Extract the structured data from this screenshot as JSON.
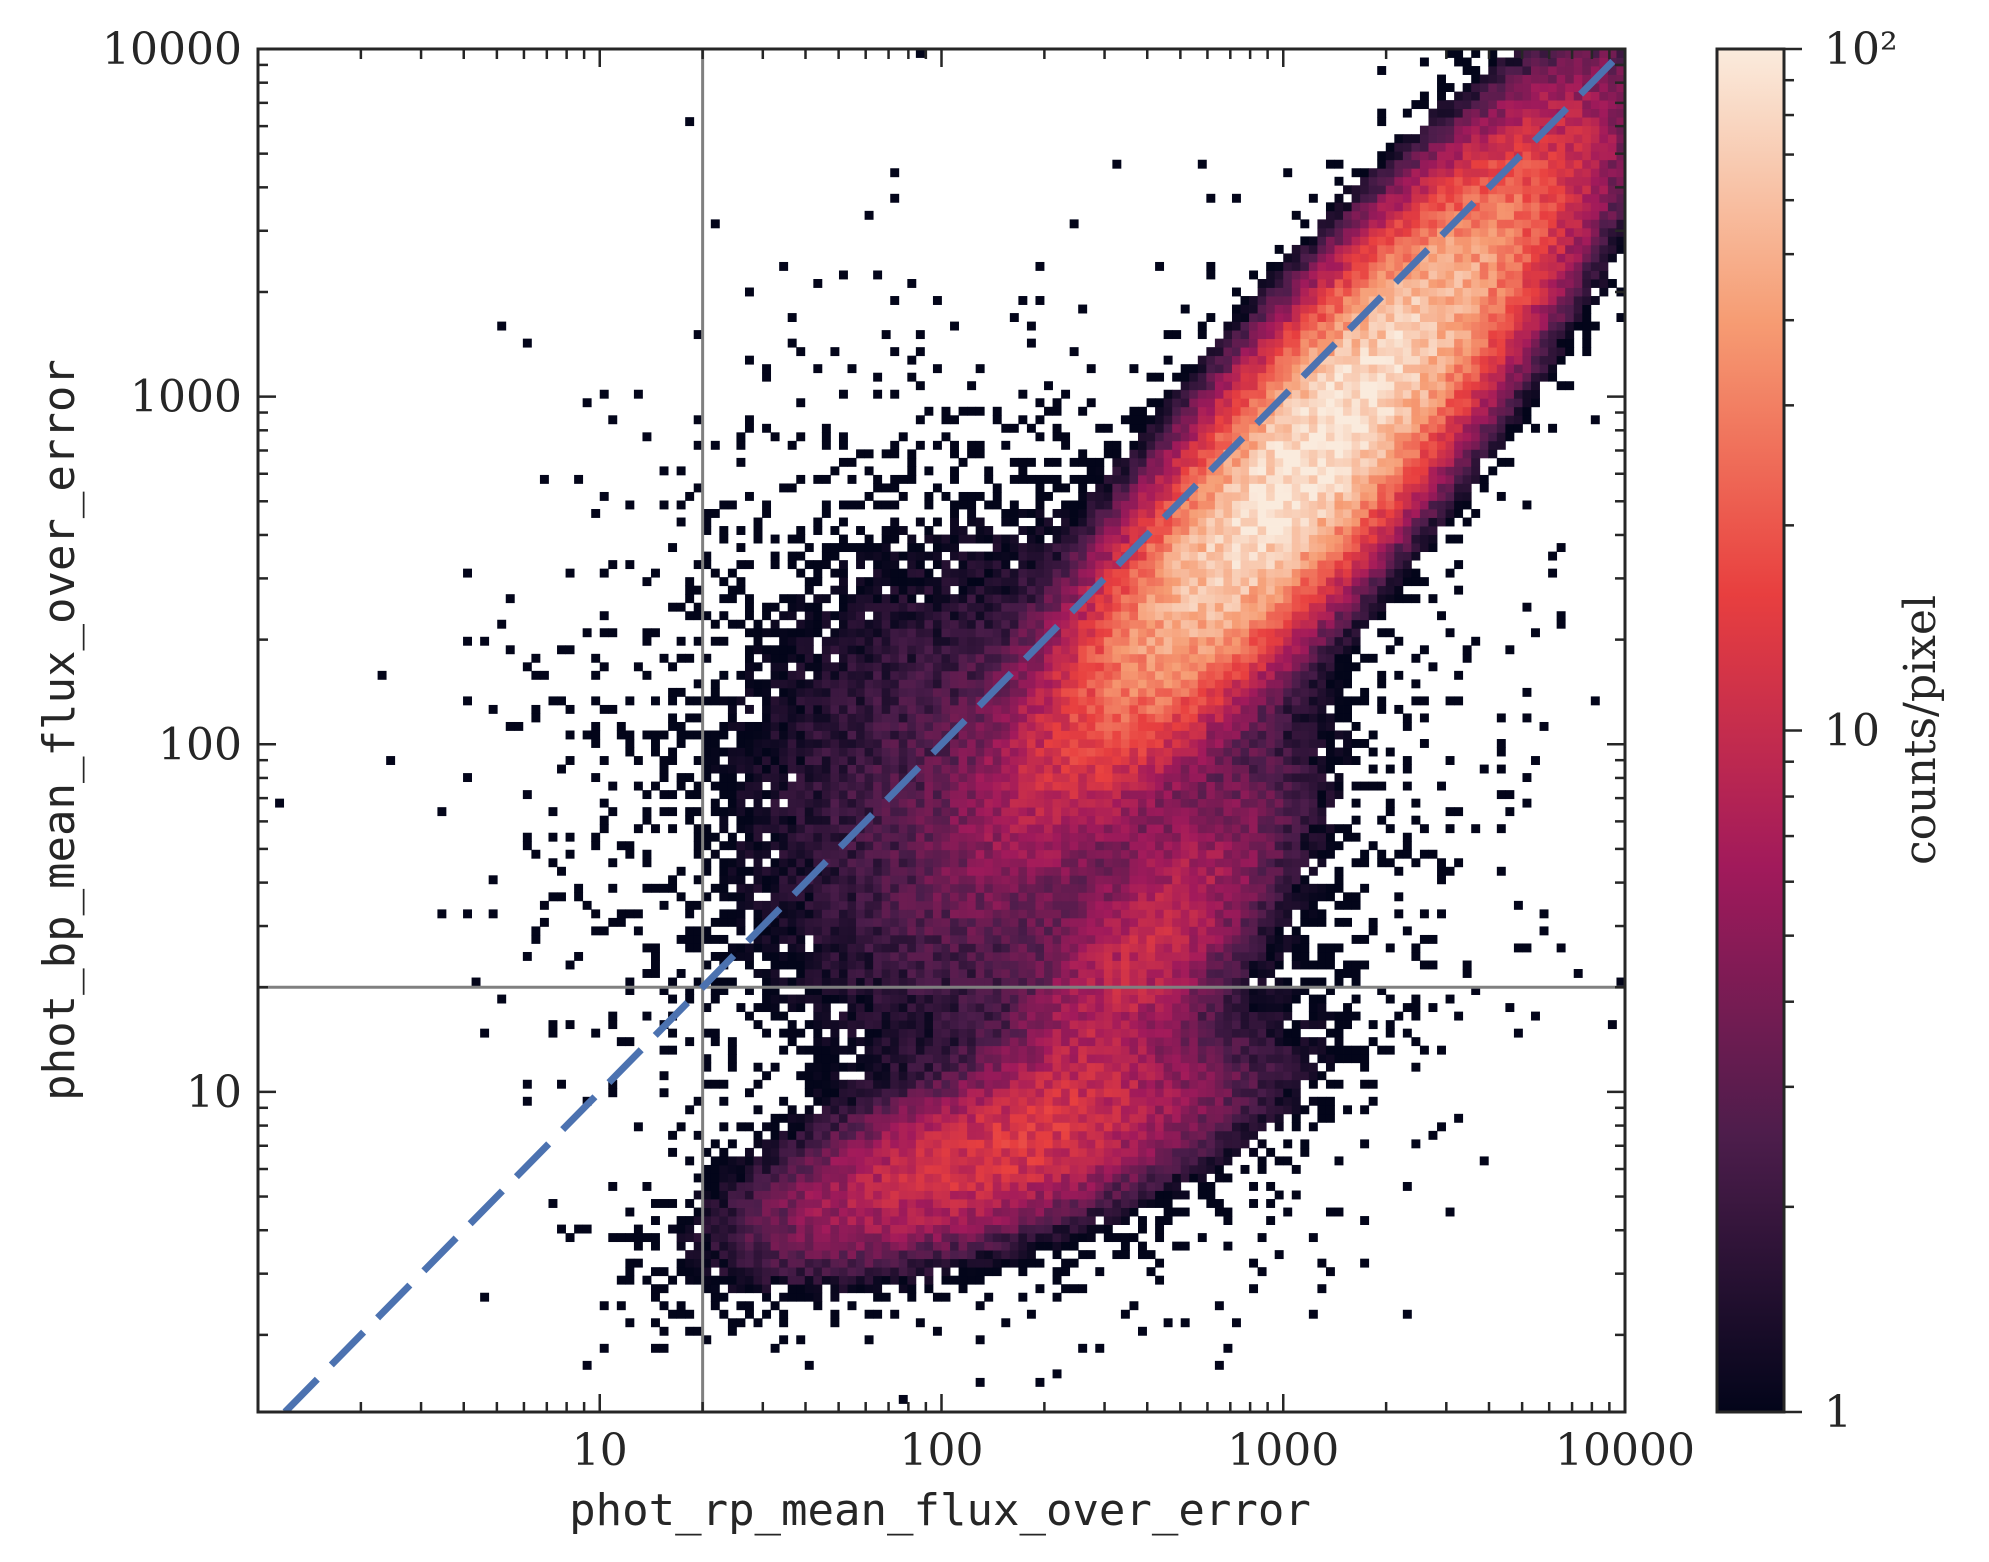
{
  "chart_data": {
    "type": "heatmap",
    "subtype": "2d-histogram",
    "title": "",
    "xlabel": "phot_rp_mean_flux_over_error",
    "ylabel": "phot_bp_mean_flux_over_error",
    "xscale": "log",
    "yscale": "log",
    "xlim": [
      1,
      10000
    ],
    "ylim": [
      1.2,
      10000
    ],
    "xticks": [
      "10",
      "100",
      "1000",
      "10000"
    ],
    "yticks": [
      "10",
      "100",
      "1000",
      "10000"
    ],
    "grid": false,
    "reference_lines": [
      {
        "kind": "vertical",
        "x": 20,
        "color": "#808080"
      },
      {
        "kind": "horizontal",
        "y": 20,
        "color": "#808080"
      },
      {
        "kind": "diagonal",
        "equation": "y = x",
        "style": "dashed",
        "color": "#4c72b0"
      }
    ],
    "density_components": [
      {
        "description": "main ridge",
        "center_x": 1300,
        "center_y": 700,
        "peak_counts": 100
      },
      {
        "description": "low-bp tail",
        "center_x": 120,
        "center_y": 6,
        "peak_counts": 12
      },
      {
        "description": "diffuse region",
        "center_x": 150,
        "center_y": 60,
        "peak_counts": 3
      }
    ],
    "colorbar": {
      "label": "counts/pixel",
      "scale": "log",
      "range": [
        1,
        100
      ],
      "tick_labels": [
        "1",
        "10",
        "10²"
      ],
      "colormap": "rocket",
      "colors": [
        "#03051a",
        "#4c1d4b",
        "#a11a5b",
        "#e83f3f",
        "#f69c73",
        "#faebdd"
      ]
    }
  }
}
